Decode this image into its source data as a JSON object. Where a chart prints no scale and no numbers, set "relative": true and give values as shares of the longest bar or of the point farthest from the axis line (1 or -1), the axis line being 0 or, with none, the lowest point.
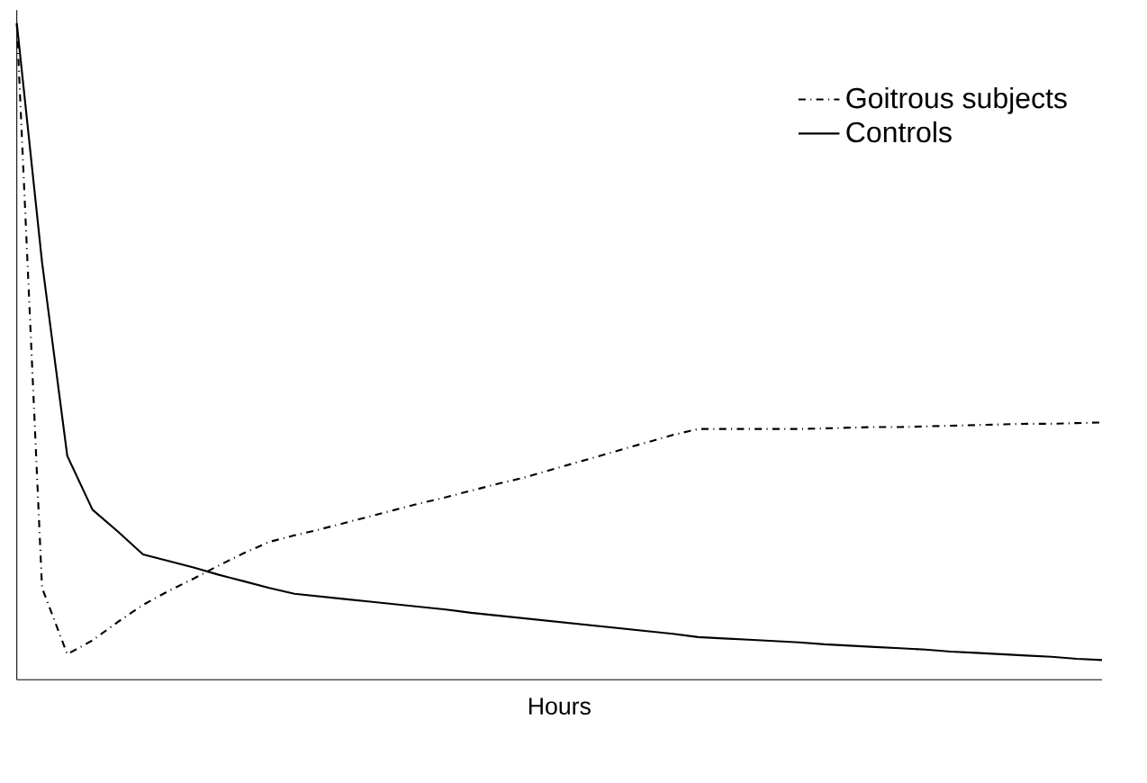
{
  "chart_data": {
    "type": "line",
    "relative": true,
    "xlabel": "Hours",
    "legend": "top right",
    "marker": "none",
    "categories": [
      null,
      null,
      null,
      null,
      null,
      null,
      null,
      null,
      null,
      null,
      null,
      null,
      null,
      null,
      null,
      null,
      null,
      null,
      null,
      null,
      null,
      null,
      null,
      null,
      null,
      null,
      null,
      null,
      null,
      null,
      null,
      null,
      null,
      null,
      null,
      null,
      null,
      null,
      null,
      null,
      null,
      null,
      null,
      null
    ],
    "series": [
      {
        "name": "Goitrous subjects",
        "color": "#000000",
        "line_style": "dashed",
        "values": [
          1.0,
          0.14,
          0.039,
          0.06,
          0.088,
          0.114,
          0.135,
          0.154,
          0.174,
          0.193,
          0.21,
          0.22,
          0.229,
          0.239,
          0.249,
          0.259,
          0.269,
          0.278,
          0.288,
          0.298,
          0.307,
          0.318,
          0.329,
          0.34,
          0.351,
          0.362,
          0.373,
          0.382,
          0.382,
          0.382,
          0.382,
          0.382,
          0.383,
          0.384,
          0.385,
          0.385,
          0.386,
          0.387,
          0.388,
          0.389,
          0.39,
          0.39,
          0.391,
          0.392
        ]
      },
      {
        "name": "Controls",
        "color": "#000000",
        "line_style": "solid",
        "values": [
          1.0,
          0.636,
          0.341,
          0.259,
          0.226,
          0.191,
          0.181,
          0.171,
          0.16,
          0.15,
          0.14,
          0.131,
          0.127,
          0.123,
          0.119,
          0.115,
          0.111,
          0.107,
          0.102,
          0.098,
          0.094,
          0.09,
          0.086,
          0.082,
          0.078,
          0.074,
          0.07,
          0.065,
          0.063,
          0.061,
          0.059,
          0.057,
          0.054,
          0.052,
          0.05,
          0.048,
          0.046,
          0.043,
          0.041,
          0.039,
          0.037,
          0.035,
          0.032,
          0.03
        ]
      }
    ]
  }
}
